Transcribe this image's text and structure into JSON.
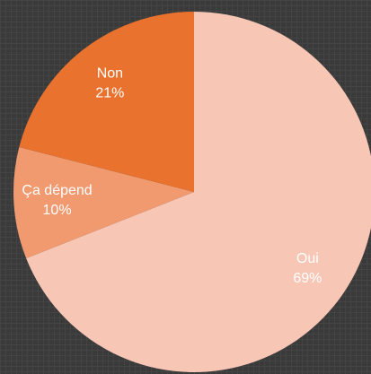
{
  "chart_data": {
    "type": "pie",
    "categories": [
      "Oui",
      "Ça dépend",
      "Non"
    ],
    "values": [
      69,
      10,
      21
    ],
    "value_labels": [
      "69%",
      "10%",
      "21%"
    ],
    "colors": [
      "#f8c6b4",
      "#f19a70",
      "#e8722e"
    ]
  }
}
